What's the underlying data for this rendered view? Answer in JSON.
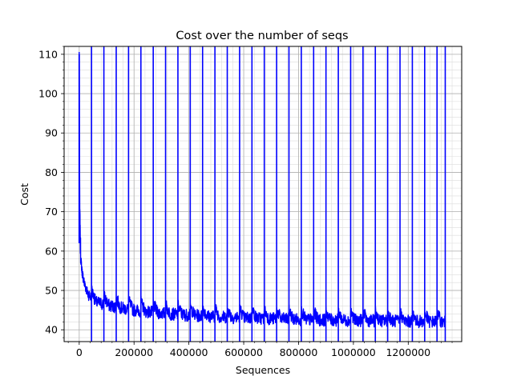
{
  "chart_data": {
    "type": "line",
    "title": "Cost over the number of seqs",
    "xlabel": "Sequences",
    "ylabel": "Cost",
    "xlim": [
      -55000,
      1395000
    ],
    "ylim": [
      37,
      112
    ],
    "x_ticks": [
      0,
      200000,
      400000,
      600000,
      800000,
      1000000,
      1200000
    ],
    "x_tick_labels": [
      "0",
      "200000",
      "400000",
      "600000",
      "800000",
      "1000000",
      "1200000"
    ],
    "y_ticks": [
      40,
      50,
      60,
      70,
      80,
      90,
      100,
      110
    ],
    "y_tick_labels": [
      "40",
      "50",
      "60",
      "70",
      "80",
      "90",
      "100",
      "110"
    ],
    "grid": "major-and-minor",
    "line_color": "#0000ff",
    "epoch_boundaries": [
      45000,
      90000,
      135000,
      180000,
      225000,
      270000,
      315000,
      360000,
      405000,
      450000,
      495000,
      540000,
      585000,
      630000,
      675000,
      720000,
      765000,
      810000,
      855000,
      900000,
      945000,
      990000,
      1035000,
      1080000,
      1125000,
      1170000,
      1215000,
      1260000,
      1305000,
      1335000
    ],
    "series": [
      {
        "name": "",
        "x": [
          0,
          1000,
          2000,
          4000,
          6000,
          10000,
          15000,
          20000,
          30000,
          45000,
          60000,
          90000,
          135000,
          180000,
          225000,
          270000,
          315000,
          360000,
          405000,
          450000,
          540000,
          630000,
          720000,
          810000,
          900000,
          990000,
          1080000,
          1170000,
          1260000,
          1335000
        ],
        "y": [
          110,
          83,
          70,
          62,
          58,
          55,
          53,
          51.5,
          49.5,
          48,
          47,
          46.5,
          45.8,
          45.2,
          44.8,
          44.4,
          44.1,
          43.9,
          43.7,
          43.5,
          43.2,
          43.0,
          42.8,
          42.6,
          42.5,
          42.4,
          42.3,
          42.2,
          42.1,
          42.0
        ]
      }
    ]
  }
}
